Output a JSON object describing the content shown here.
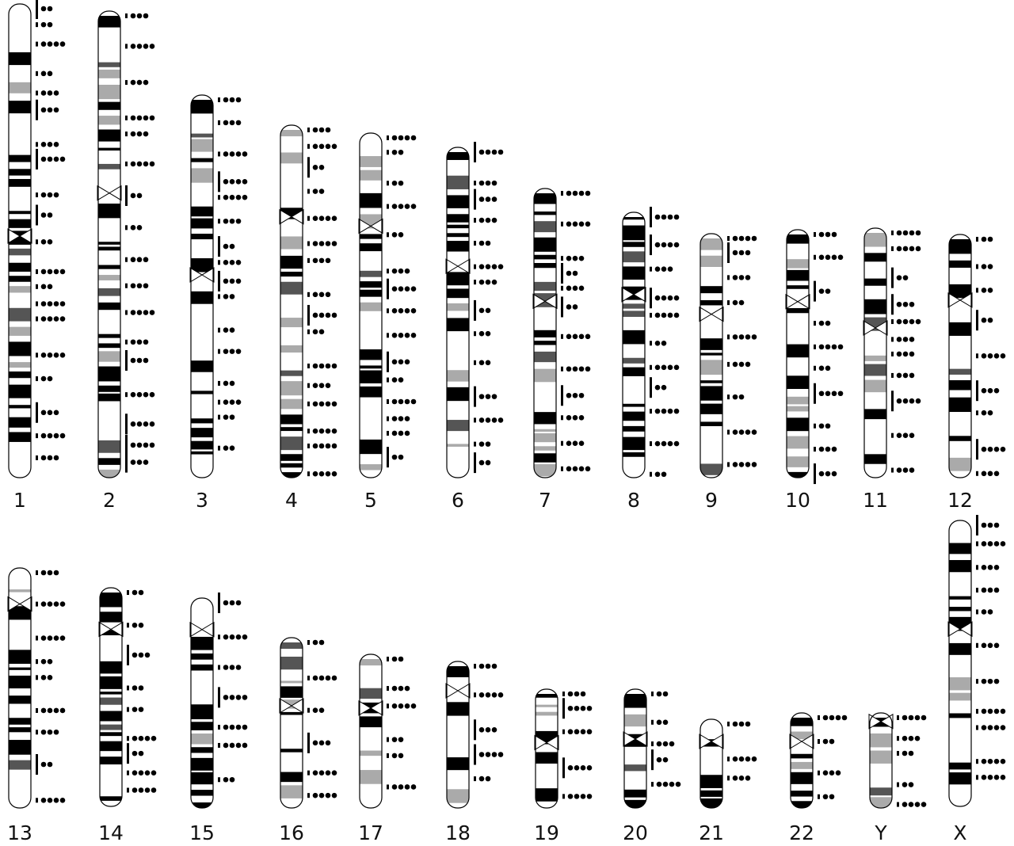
{
  "chromosomes": [
    "1",
    "2",
    "3",
    "4",
    "5",
    "6",
    "7",
    "8",
    "9",
    "10",
    "11",
    "12",
    "13",
    "14",
    "15",
    "16",
    "17",
    "18",
    "19",
    "20",
    "21",
    "22",
    "Y",
    "X"
  ]
}
